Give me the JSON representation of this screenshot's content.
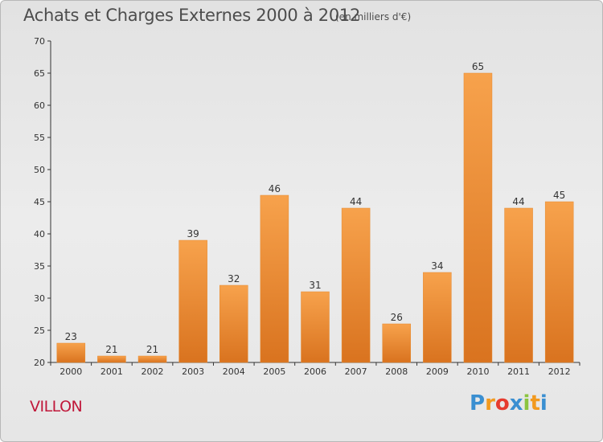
{
  "chart_data": {
    "type": "bar",
    "title": "Achats et Charges Externes 2000 à 2012",
    "subtitle": "(en milliers d'€)",
    "categories": [
      "2000",
      "2001",
      "2002",
      "2003",
      "2004",
      "2005",
      "2006",
      "2007",
      "2008",
      "2009",
      "2010",
      "2011",
      "2012"
    ],
    "values": [
      23,
      21,
      21,
      39,
      32,
      46,
      31,
      44,
      26,
      34,
      65,
      44,
      45
    ],
    "ylim": [
      20,
      70
    ],
    "yticks": [
      20,
      25,
      30,
      35,
      40,
      45,
      50,
      55,
      60,
      65,
      70
    ],
    "grid": false,
    "colors": {
      "bar_top": "#f7a24c",
      "bar_bottom": "#d9731f",
      "bar_stroke": "#e58a30"
    }
  },
  "commune": "VILLON",
  "logo": {
    "letters": [
      {
        "ch": "P",
        "color": "#3a8fd1"
      },
      {
        "ch": "r",
        "color": "#f29a1f"
      },
      {
        "ch": "o",
        "color": "#e63b2e"
      },
      {
        "ch": "x",
        "color": "#3a8fd1"
      },
      {
        "ch": "i",
        "color": "#8cc43f"
      },
      {
        "ch": "t",
        "color": "#f29a1f"
      },
      {
        "ch": "i",
        "color": "#3a8fd1"
      }
    ]
  }
}
